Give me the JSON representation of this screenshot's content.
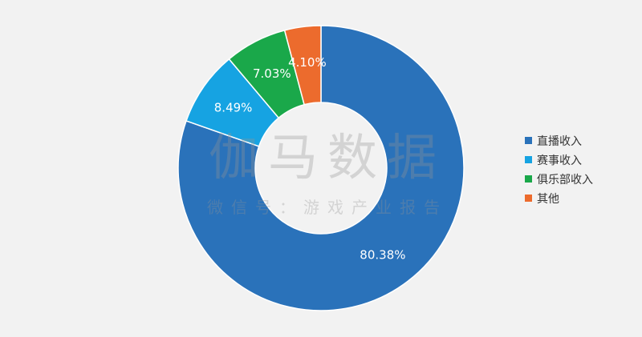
{
  "chart_data": {
    "type": "pie",
    "donut": true,
    "categories": [
      "直播收入",
      "赛事收入",
      "俱乐部收入",
      "其他"
    ],
    "values": [
      80.38,
      8.49,
      7.03,
      4.1
    ],
    "value_labels": [
      "80.38%",
      "8.49%",
      "7.03%",
      "4.10%"
    ],
    "colors": [
      "#2a72ba",
      "#16a3e2",
      "#1aa84a",
      "#ec6b2d"
    ],
    "legend_position": "right",
    "title": ""
  },
  "watermark": {
    "main": "伽马数据",
    "sub": "微信号：游戏产业报告"
  }
}
